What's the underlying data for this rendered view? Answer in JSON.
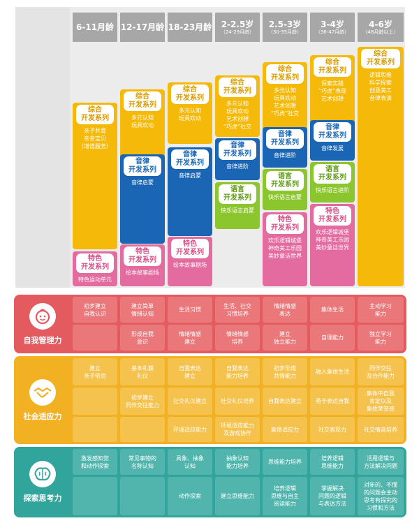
{
  "colors": {
    "yellow": "#f5b90a",
    "blue": "#1b66b4",
    "green": "#8bc62f",
    "pink": "#e36b9f",
    "header_gray": "#a7a7a7",
    "self": "#e35b5f",
    "social": "#f2b122",
    "explore": "#31a49b"
  },
  "columns": [
    {
      "label": "6-11月龄",
      "sub": ""
    },
    {
      "label": "12-17月龄",
      "sub": ""
    },
    {
      "label": "18-23月龄",
      "sub": ""
    },
    {
      "label": "2-2.5岁",
      "sub": "（24-29月龄）"
    },
    {
      "label": "2.5-3岁",
      "sub": "（30-35月龄）"
    },
    {
      "label": "3-4岁",
      "sub": "（36-47月龄）"
    },
    {
      "label": "4-6岁",
      "sub": "（48月龄以上）"
    }
  ],
  "course_blocks": [
    {
      "color": "yellow",
      "tag_lines": [
        "综合",
        "开发系列"
      ],
      "desc": "亲子共育\n亲亲宝贝\n（增值服务）"
    },
    {
      "color": "pink",
      "tag_lines": [
        "特色",
        "开发系列"
      ],
      "desc": "特色运动单元"
    },
    {
      "color": "yellow",
      "tag_lines": [
        "综合",
        "开发系列"
      ],
      "desc": "多元认知\n玩具欢动"
    },
    {
      "color": "blue",
      "tag_lines": [
        "音律",
        "开发系列"
      ],
      "desc": "音律启蒙"
    },
    {
      "color": "pink",
      "tag_lines": [
        "特色",
        "开发系列"
      ],
      "desc": "绘本故事剧场"
    },
    {
      "color": "yellow",
      "tag_lines": [
        "综合",
        "开发系列"
      ],
      "desc": "多元认知\n玩具欢动"
    },
    {
      "color": "blue",
      "tag_lines": [
        "音律",
        "开发系列"
      ],
      "desc": "音律启蒙"
    },
    {
      "color": "pink",
      "tag_lines": [
        "特色",
        "开发系列"
      ],
      "desc": "绘本故事剧场"
    },
    {
      "color": "yellow",
      "tag_lines": [
        "综合",
        "开发系列"
      ],
      "desc": "多元认知\n玩具欢动\n艺术创想\n“巧虎”社交"
    },
    {
      "color": "blue",
      "tag_lines": [
        "音律",
        "开发系列"
      ],
      "desc": "音律进阶"
    },
    {
      "color": "green",
      "tag_lines": [
        "语言",
        "开发系列"
      ],
      "desc": "快乐语言启蒙"
    },
    {
      "color": "yellow",
      "tag_lines": [
        "综合",
        "开发系列"
      ],
      "desc": "多元认知\n玩具欢动\n艺术创想\n“巧虎”社交"
    },
    {
      "color": "blue",
      "tag_lines": [
        "音律",
        "开发系列"
      ],
      "desc": "音律进阶"
    },
    {
      "color": "green",
      "tag_lines": [
        "语言",
        "开发系列"
      ],
      "desc": "快乐语言启蒙"
    },
    {
      "color": "pink",
      "tag_lines": [
        "特色",
        "开发系列"
      ],
      "desc": "欢乐逻辑城堡\n神奇美工乐园\n美妙童话世界"
    },
    {
      "color": "yellow",
      "tag_lines": [
        "综合",
        "开发系列"
      ],
      "desc": "探索实践\n“巧虎”表现\n艺术创想"
    },
    {
      "color": "blue",
      "tag_lines": [
        "音律",
        "开发系列"
      ],
      "desc": "音律发展"
    },
    {
      "color": "green",
      "tag_lines": [
        "语言",
        "开发系列"
      ],
      "desc": "快乐语言进阶"
    },
    {
      "color": "pink",
      "tag_lines": [
        "特色",
        "开发系列"
      ],
      "desc": "欢乐逻辑城堡\n神奇美工乐园\n美妙童话世界"
    },
    {
      "color": "yellow",
      "tag_lines": [
        "综合",
        "开发系列"
      ],
      "desc": "逻辑思维\n科学探索\n创意美工\n音律表演"
    }
  ],
  "ability_sections": [
    {
      "label": "自我管理力",
      "icon": "child-face-icon",
      "rows": [
        [
          "初步建立\n自我认识",
          "建立简单\n情绪认知",
          "生活习惯",
          "生活、社交\n习惯培养",
          "情绪情感\n表达",
          "集体生活",
          "主动学习\n能力"
        ],
        [
          "",
          "形成自我\n意识",
          "情绪情感\n建立",
          "情绪情感\n培养",
          "建立\n独立能力",
          "自理能力",
          "独立学习\n能力"
        ]
      ]
    },
    {
      "label": "社会适应力",
      "icon": "handshake-icon",
      "rows": [
        [
          "建立\n亲子依恋",
          "基本礼貌\n礼仪",
          "自我表达\n建立",
          "自我表达\n能力培养",
          "初步形成\n共情能力",
          "融入集体生活",
          "同伴交往\n及合作能力"
        ],
        [
          "",
          "初步建立\n同伴交往能力",
          "社交礼仪建立",
          "社交礼仪培养",
          "自我表达建立",
          "勇于表达自我",
          "集体中自我\n肯定以及\n集体荣誉感"
        ],
        [
          "",
          "",
          "环境适应能力",
          "环境适应能力\n及游戏协作",
          "集体适应力",
          "社交表现力",
          "社交情商培养"
        ]
      ]
    },
    {
      "label": "探索思考力",
      "icon": "brain-icon",
      "rows": [
        [
          "激发感知觉\n和动作探索",
          "常见事物的\n名称认知",
          "具象、抽象\n认知",
          "抽象认知\n能力培养",
          "思维能力培养",
          "培养逻辑\n思维能力",
          "活用逻辑与\n方法解决问题"
        ],
        [
          "",
          "",
          "动作探索",
          "建立思维能力",
          "培养逻辑\n思维与自主\n阅读能力",
          "掌握解决\n问题的逻辑\n与表达方法",
          "对新的、不懂\n的问题会主动\n思考有探究的\n习惯和方法"
        ]
      ]
    }
  ]
}
